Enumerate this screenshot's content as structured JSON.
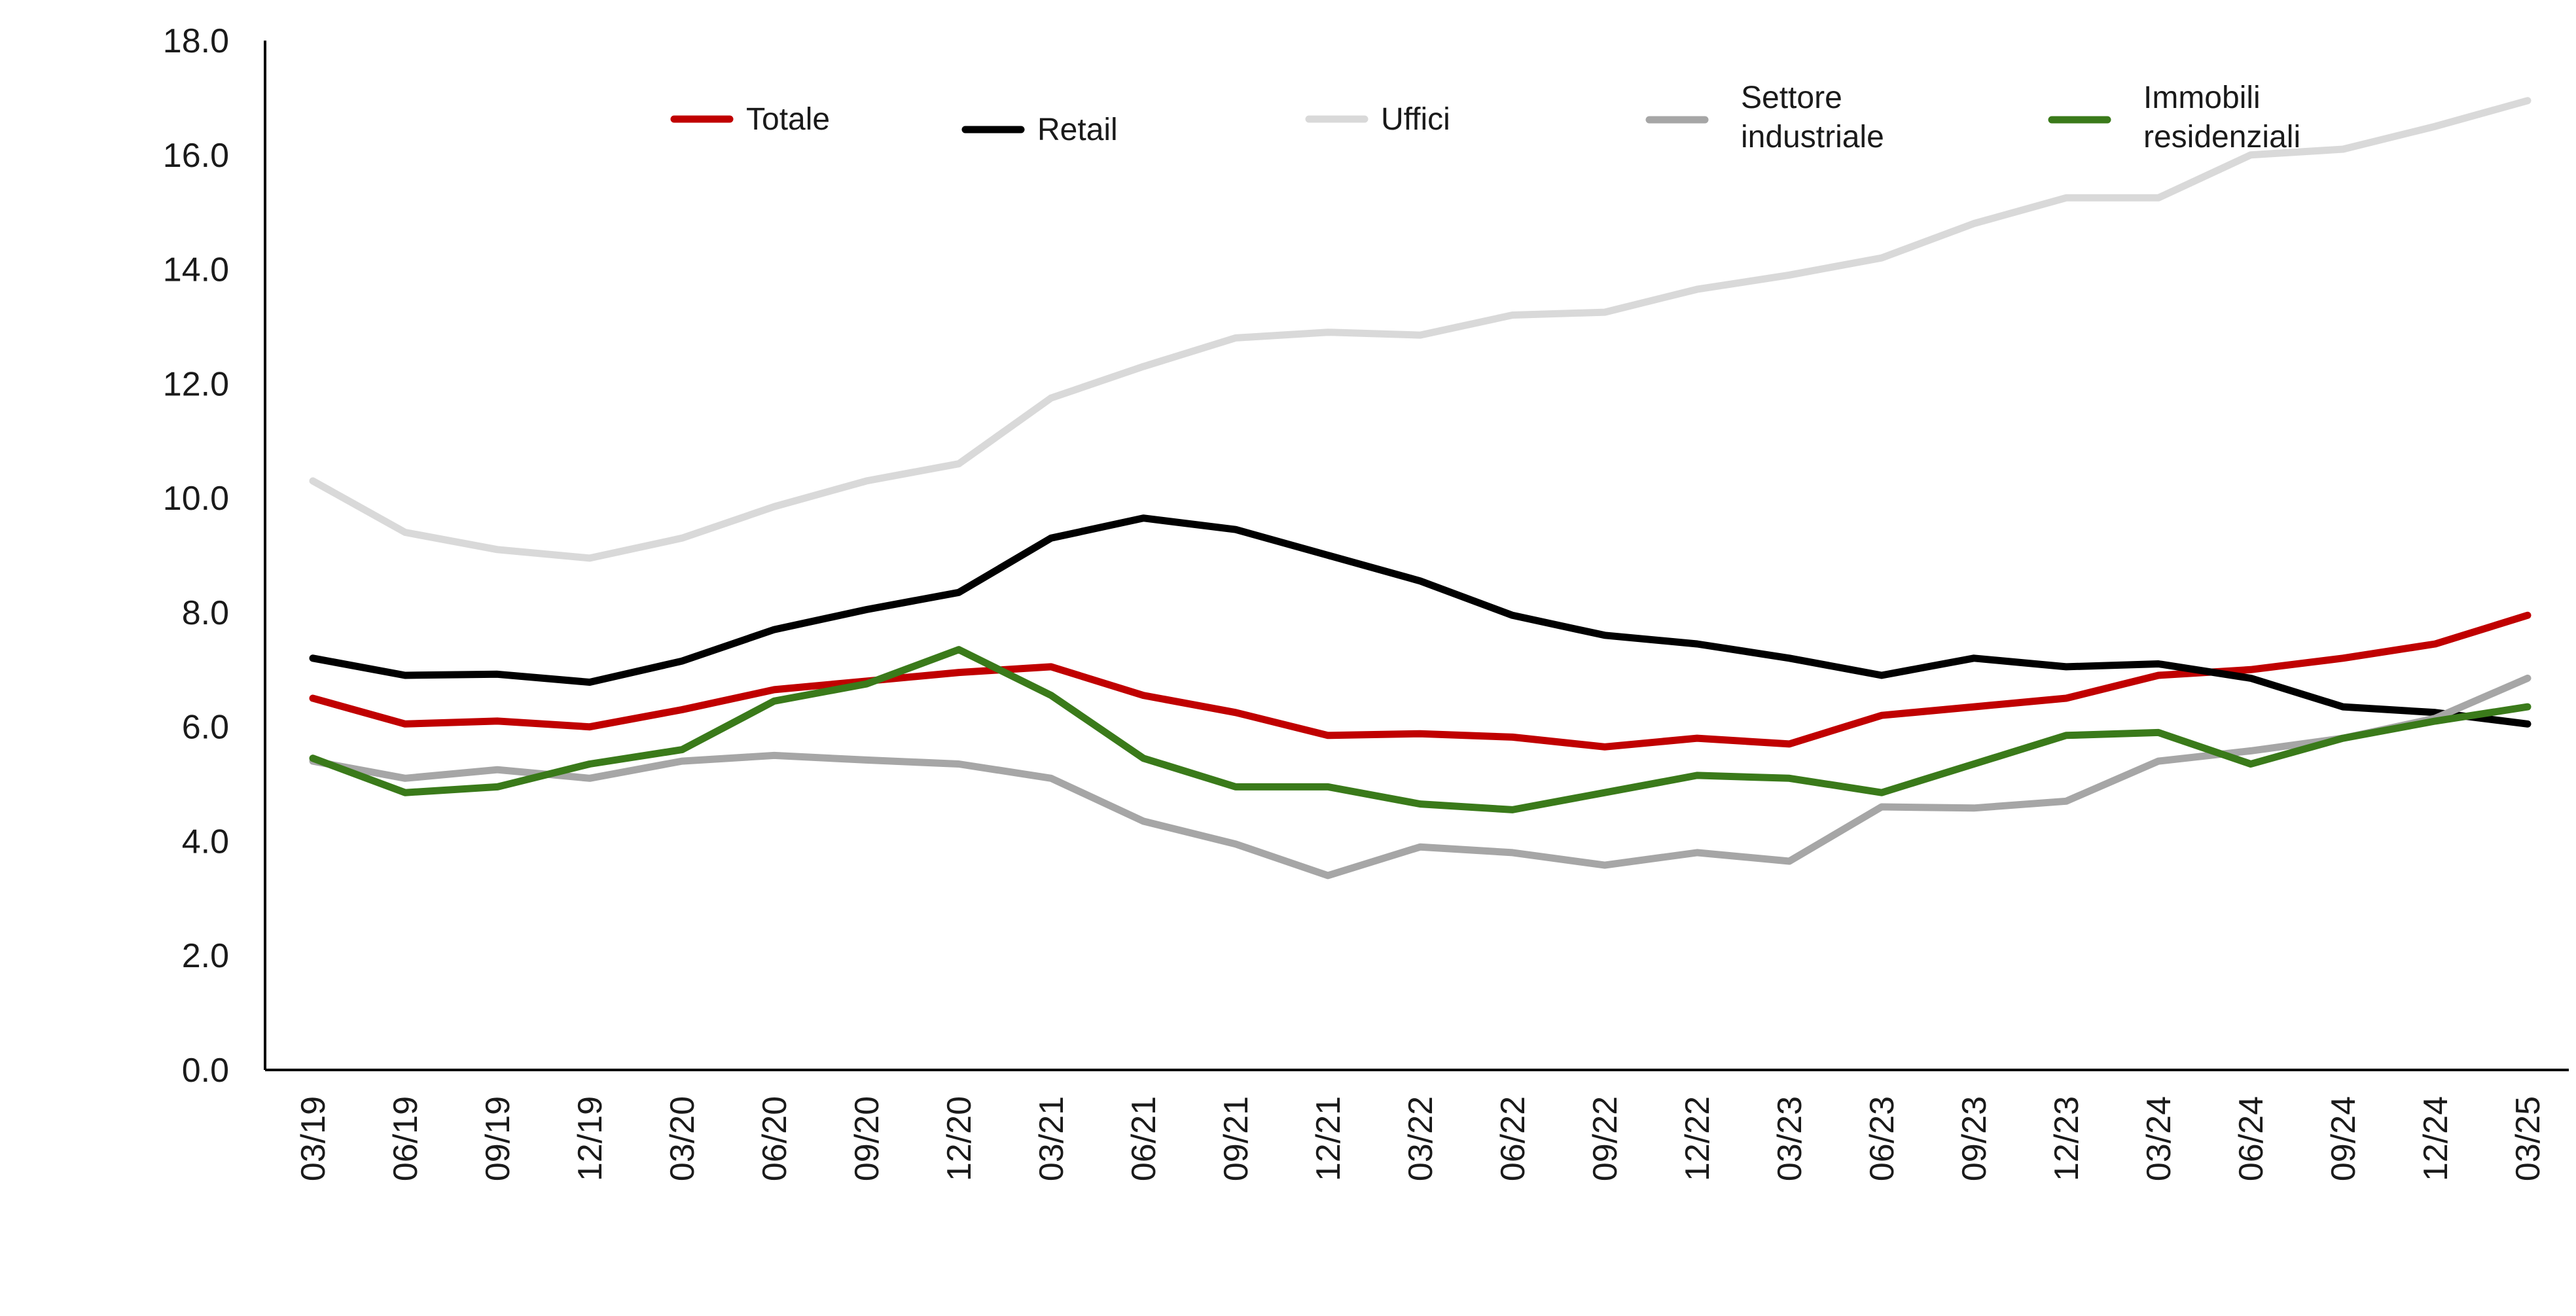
{
  "chart_data": {
    "type": "line",
    "title": "",
    "xlabel": "",
    "ylabel": "",
    "x": [
      "03/19",
      "06/19",
      "09/19",
      "12/19",
      "03/20",
      "06/20",
      "09/20",
      "12/20",
      "03/21",
      "06/21",
      "09/21",
      "12/21",
      "03/22",
      "06/22",
      "09/22",
      "12/22",
      "03/23",
      "06/23",
      "09/23",
      "12/23",
      "03/24",
      "06/24",
      "09/24",
      "12/24",
      "03/25"
    ],
    "ylim": [
      0,
      18
    ],
    "yticks": [
      "0.0",
      "2.0",
      "4.0",
      "6.0",
      "8.0",
      "10.0",
      "12.0",
      "14.0",
      "16.0",
      "18.0"
    ],
    "grid": false,
    "legend_position": "top",
    "series": [
      {
        "name": "Totale",
        "color": "#c00000",
        "values": [
          6.5,
          6.05,
          6.1,
          6.0,
          6.3,
          6.65,
          6.8,
          6.95,
          7.05,
          6.55,
          6.25,
          5.85,
          5.88,
          5.82,
          5.65,
          5.8,
          5.7,
          6.2,
          6.35,
          6.5,
          6.9,
          7.0,
          7.2,
          7.45,
          7.95
        ]
      },
      {
        "name": "Retail",
        "color": "#000000",
        "values": [
          7.2,
          6.9,
          6.92,
          6.78,
          7.15,
          7.7,
          8.05,
          8.35,
          9.3,
          9.65,
          9.45,
          9.0,
          8.55,
          7.95,
          7.6,
          7.45,
          7.2,
          6.9,
          7.2,
          7.05,
          7.1,
          6.85,
          6.35,
          6.25,
          6.05
        ]
      },
      {
        "name": "Uffici",
        "color": "#d9d9d9",
        "values": [
          10.3,
          9.4,
          9.1,
          8.95,
          9.3,
          9.85,
          10.3,
          10.6,
          11.75,
          12.3,
          12.8,
          12.9,
          12.85,
          13.2,
          13.25,
          13.65,
          13.9,
          14.2,
          14.8,
          15.25,
          15.25,
          16.0,
          16.1,
          16.5,
          16.95
        ]
      },
      {
        "name": "Settore industriale",
        "color": "#a6a6a6",
        "values": [
          5.4,
          5.1,
          5.25,
          5.1,
          5.4,
          5.5,
          5.42,
          5.35,
          5.1,
          4.35,
          3.95,
          3.4,
          3.9,
          3.8,
          3.58,
          3.8,
          3.65,
          4.6,
          4.58,
          4.7,
          5.4,
          5.58,
          5.8,
          6.15,
          6.85
        ]
      },
      {
        "name": "Immobili residenziali",
        "color": "#3a7a1a",
        "values": [
          5.45,
          4.85,
          4.95,
          5.35,
          5.6,
          6.45,
          6.75,
          7.35,
          6.55,
          5.45,
          4.95,
          4.95,
          4.65,
          4.55,
          4.85,
          5.15,
          5.1,
          4.85,
          5.35,
          5.85,
          5.9,
          5.35,
          5.8,
          6.1,
          6.35
        ]
      }
    ],
    "legend": [
      {
        "label_lines": [
          "Totale"
        ]
      },
      {
        "label_lines": [
          "Retail"
        ]
      },
      {
        "label_lines": [
          "Uffici"
        ]
      },
      {
        "label_lines": [
          "Settore",
          "industriale"
        ]
      },
      {
        "label_lines": [
          "Immobili",
          "residenziali"
        ]
      }
    ]
  }
}
